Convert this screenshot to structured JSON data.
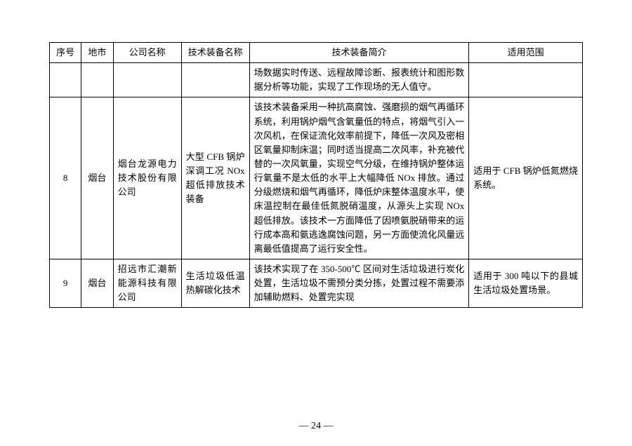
{
  "table": {
    "headers": {
      "num": "序号",
      "city": "地市",
      "comp": "公司名称",
      "eqname": "技术装备名称",
      "brief": "技术装备简介",
      "scope": "适用范围"
    },
    "rows": [
      {
        "num": "",
        "city": "",
        "comp": "",
        "eqname": "",
        "brief": "场数据实时传送、远程故障诊断、报表统计和图形数据分析等功能，实现了工作现场的无人值守。",
        "scope": ""
      },
      {
        "num": "8",
        "city": "烟台",
        "comp": "烟台龙源电力技术股份有限公司",
        "eqname": "大型 CFB 锅炉深调工况 NOx 超低排放技术装备",
        "brief": "该技术装备采用一种抗高腐蚀、强磨损的烟气再循环系统，利用锅炉烟气含氧量低的特点，将烟气引入一次风机，在保证流化效率前提下，降低一次风及密相区氧量抑制床温；同时适当提高二次风率，补充被代替的一次风氧量，实现空气分级，在维持锅炉整体运行氧量不是太低的水平上大幅降低 NOx 排放。通过分级燃烧和烟气再循环，降低炉床整体温度水平，使床温控制在最佳低氮脱硝温度，从源头上实现 NOx 超低排放。该技术一方面降低了因喷氨脱硝带来的运行成本高和氨逃逸腐蚀问题，另一方面使流化风量远离最低值提高了运行安全性。",
        "scope": "适用于 CFB 锅炉低氮燃烧系统。"
      },
      {
        "num": "9",
        "city": "烟台",
        "comp": "招远市汇潮新能源科技有限公司",
        "eqname": "生活垃圾低温热解碳化技术",
        "brief": "该技术实现了在 350-500℃ 区间对生活垃圾进行炭化处置，生活垃圾不需预分类分拣，处置过程不需要添加辅助燃料、处置完实现",
        "scope": "适用于 300 吨以下的县城生活垃圾处置场景。"
      }
    ]
  },
  "pageNumber": "— 24 —"
}
